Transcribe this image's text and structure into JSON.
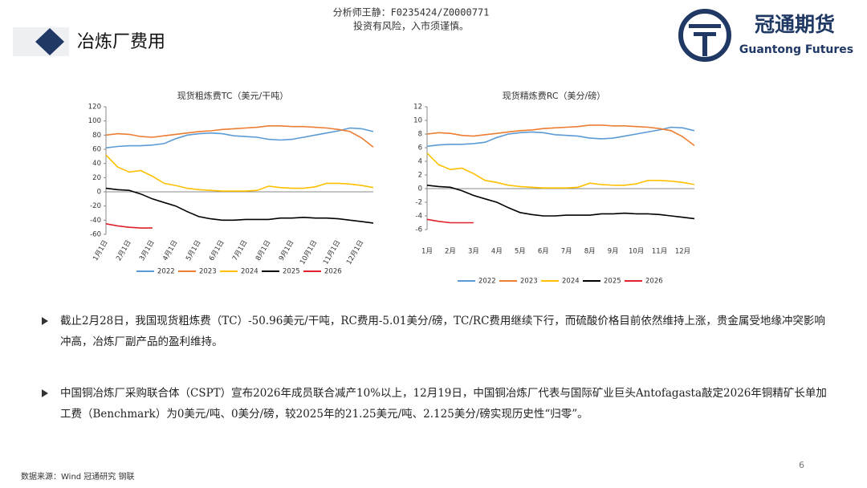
{
  "header": {
    "title": "冶炼厂费用",
    "analyst": "分析师王静：F0235424/Z0000771",
    "risk": "投资有风险，入市须谨慎。",
    "logo_cn": "冠通期货",
    "logo_en": "Guantong Futures"
  },
  "chart_data": [
    {
      "type": "line",
      "title": "现货粗炼费TC（美元/干吨）",
      "categories": [
        "1月1日",
        null,
        "2月1日",
        null,
        "3月1日",
        null,
        "4月1日",
        null,
        "5月1日",
        null,
        "6月1日",
        null,
        "7月1日",
        null,
        "8月1日",
        null,
        "9月1日",
        null,
        "10月1日",
        null,
        "11月1日",
        null,
        "12月1日",
        null
      ],
      "ylim": [
        -60,
        120
      ],
      "yticks": [
        -60,
        -40,
        -20,
        0,
        20,
        40,
        60,
        80,
        100,
        120
      ],
      "series": [
        {
          "name": "2022",
          "color": "#5b9bd5",
          "values": [
            62,
            64,
            65,
            65,
            66,
            68,
            75,
            80,
            82,
            83,
            82,
            79,
            78,
            77,
            74,
            73,
            74,
            77,
            80,
            83,
            86,
            90,
            89,
            85
          ]
        },
        {
          "name": "2023",
          "color": "#ed7d31",
          "values": [
            80,
            82,
            81,
            78,
            77,
            79,
            81,
            83,
            85,
            86,
            88,
            89,
            90,
            91,
            93,
            93,
            92,
            92,
            91,
            90,
            88,
            85,
            76,
            63
          ]
        },
        {
          "name": "2024",
          "color": "#ffc000",
          "values": [
            52,
            35,
            28,
            30,
            22,
            12,
            9,
            5,
            3,
            2,
            1,
            1,
            1,
            2,
            8,
            6,
            5,
            5,
            7,
            12,
            12,
            11,
            9,
            6
          ]
        },
        {
          "name": "2025",
          "color": "#000000",
          "values": [
            5,
            3,
            2,
            -3,
            -10,
            -15,
            -20,
            -28,
            -35,
            -38,
            -40,
            -40,
            -39,
            -39,
            -39,
            -37,
            -37,
            -36,
            -37,
            -37,
            -38,
            -40,
            -42,
            -44
          ]
        },
        {
          "name": "2026",
          "color": "#e0202a",
          "values": [
            -45,
            -48,
            -50,
            -51,
            -51,
            null,
            null,
            null,
            null,
            null,
            null,
            null,
            null,
            null,
            null,
            null,
            null,
            null,
            null,
            null,
            null,
            null,
            null,
            null
          ]
        }
      ]
    },
    {
      "type": "line",
      "title": "现货精炼费RC（美分/磅）",
      "categories": [
        "1月",
        null,
        "2月",
        null,
        "3月",
        null,
        "4月",
        null,
        "5月",
        null,
        "6月",
        null,
        "7月",
        null,
        "8月",
        null,
        "9月",
        null,
        "10月",
        null,
        "11月",
        null,
        "12月",
        null
      ],
      "ylim": [
        -6,
        12
      ],
      "yticks": [
        -6,
        -4,
        -2,
        0,
        2,
        4,
        6,
        8,
        10,
        12
      ],
      "series": [
        {
          "name": "2022",
          "color": "#5b9bd5",
          "values": [
            6.2,
            6.4,
            6.5,
            6.5,
            6.6,
            6.8,
            7.5,
            8.0,
            8.2,
            8.3,
            8.2,
            7.9,
            7.8,
            7.7,
            7.4,
            7.3,
            7.4,
            7.7,
            8.0,
            8.3,
            8.6,
            9.0,
            8.9,
            8.5
          ]
        },
        {
          "name": "2023",
          "color": "#ed7d31",
          "values": [
            8.0,
            8.2,
            8.1,
            7.8,
            7.7,
            7.9,
            8.1,
            8.3,
            8.5,
            8.6,
            8.8,
            8.9,
            9.0,
            9.1,
            9.3,
            9.3,
            9.2,
            9.2,
            9.1,
            9.0,
            8.8,
            8.5,
            7.6,
            6.3
          ]
        },
        {
          "name": "2024",
          "color": "#ffc000",
          "values": [
            5.2,
            3.5,
            2.8,
            3.0,
            2.2,
            1.2,
            0.9,
            0.5,
            0.3,
            0.2,
            0.1,
            0.1,
            0.1,
            0.2,
            0.8,
            0.6,
            0.5,
            0.5,
            0.7,
            1.2,
            1.2,
            1.1,
            0.9,
            0.6
          ]
        },
        {
          "name": "2025",
          "color": "#000000",
          "values": [
            0.5,
            0.3,
            0.2,
            -0.3,
            -1.0,
            -1.5,
            -2.0,
            -2.8,
            -3.5,
            -3.8,
            -4.0,
            -4.0,
            -3.9,
            -3.9,
            -3.9,
            -3.7,
            -3.7,
            -3.6,
            -3.7,
            -3.7,
            -3.8,
            -4.0,
            -4.2,
            -4.4
          ]
        },
        {
          "name": "2026",
          "color": "#e0202a",
          "values": [
            -4.5,
            -4.8,
            -5.0,
            -5.0,
            -5.0,
            null,
            null,
            null,
            null,
            null,
            null,
            null,
            null,
            null,
            null,
            null,
            null,
            null,
            null,
            null,
            null,
            null,
            null,
            null
          ]
        }
      ]
    }
  ],
  "bullets": [
    "截止2月28日，我国现货粗炼费（TC）-50.96美元/干吨，RC费用-5.01美分/磅，TC/RC费用继续下行，而硫酸价格目前依然维持上涨，贵金属受地缘冲突影响冲高，冶炼厂副产品的盈利维持。",
    "中国铜冶炼厂采购联合体（CSPT）宣布2026年成员联合减产10%以上，12月19日，中国铜冶炼厂代表与国际矿业巨头Antofagasta敲定2026年铜精矿长单加工费（Benchmark）为0美元/吨、0美分/磅，较2025年的21.25美元/吨、2.125美分/磅实现历史性“归零”。"
  ],
  "footer": {
    "source": "数据来源：Wind 冠通研究 钢联",
    "page": "6"
  }
}
